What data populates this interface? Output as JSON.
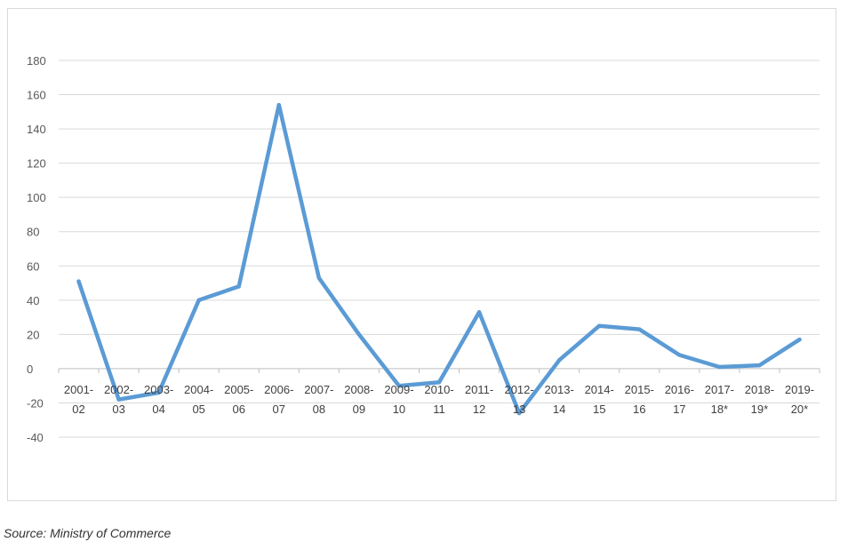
{
  "chart_data": {
    "type": "line",
    "categories": [
      [
        "2001-",
        "02"
      ],
      [
        "2002-",
        "03"
      ],
      [
        "2003-",
        "04"
      ],
      [
        "2004-",
        "05"
      ],
      [
        "2005-",
        "06"
      ],
      [
        "2006-",
        "07"
      ],
      [
        "2007-",
        "08"
      ],
      [
        "2008-",
        "09"
      ],
      [
        "2009-",
        "10"
      ],
      [
        "2010-",
        "11"
      ],
      [
        "2011-",
        "12"
      ],
      [
        "2012-",
        "13"
      ],
      [
        "2013-",
        "14"
      ],
      [
        "2014-",
        "15"
      ],
      [
        "2015-",
        "16"
      ],
      [
        "2016-",
        "17"
      ],
      [
        "2017-",
        "18*"
      ],
      [
        "2018-",
        "19*"
      ],
      [
        "2019-",
        "20*"
      ]
    ],
    "series": [
      {
        "values": [
          51,
          -18,
          -14,
          40,
          48,
          154,
          53,
          20,
          -10,
          -8,
          33,
          -26,
          5,
          25,
          23,
          8,
          1,
          2,
          17
        ]
      }
    ],
    "ylim": [
      -40,
      180
    ],
    "yticks": [
      180,
      160,
      140,
      120,
      100,
      80,
      60,
      40,
      20,
      0,
      -20,
      -40
    ],
    "grid": true,
    "colors": {
      "line": "#5b9bd5",
      "grid": "#d9d9d9",
      "axis": "#bfbfbf"
    }
  },
  "source_note": "Source: Ministry of Commerce"
}
